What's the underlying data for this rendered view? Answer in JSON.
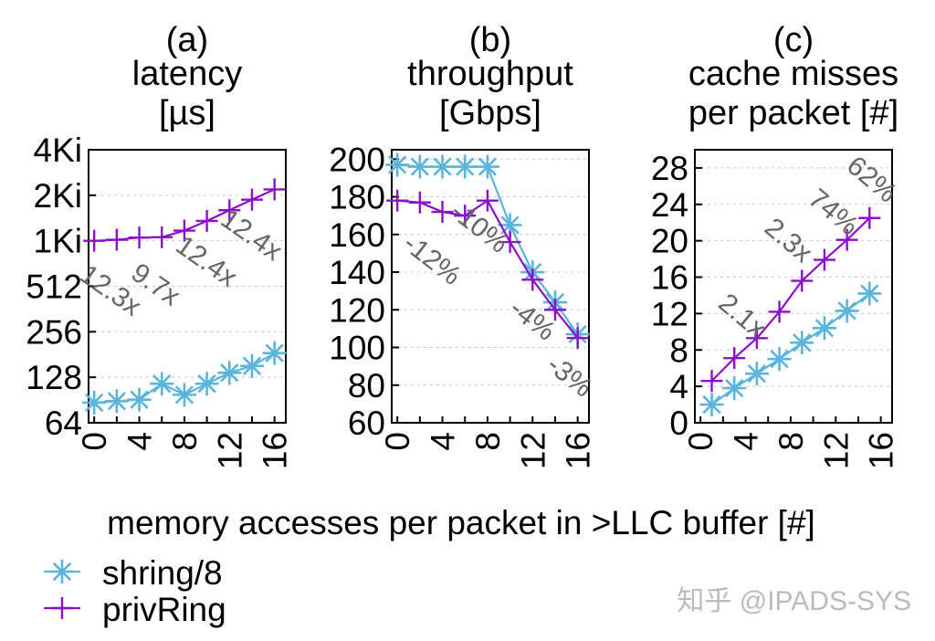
{
  "chart_data": {
    "xlabel": "memory accesses per packet in >LLC buffer [#]",
    "x_ticks": [
      "0",
      "4",
      "8",
      "12",
      "16"
    ],
    "legend": [
      {
        "name": "shring/8",
        "color": "#5ab4dc",
        "marker": "asterisk-icon"
      },
      {
        "name": "privRing",
        "color": "#8b10c9",
        "marker": "plus-icon"
      }
    ],
    "panels": [
      {
        "type": "line",
        "label": "(a)",
        "title_lines": [
          "latency",
          "[µs]"
        ],
        "yscale": "log2",
        "ylim": [
          64,
          4096
        ],
        "y_ticks": [
          {
            "value": 64,
            "label": "64"
          },
          {
            "value": 128,
            "label": "128"
          },
          {
            "value": 256,
            "label": "256"
          },
          {
            "value": 512,
            "label": "512"
          },
          {
            "value": 1024,
            "label": "1Ki"
          },
          {
            "value": 2048,
            "label": "2Ki"
          },
          {
            "value": 4096,
            "label": "4Ki"
          }
        ],
        "series": [
          {
            "name": "shring/8",
            "x": [
              0,
              2,
              4,
              6,
              8,
              10,
              12,
              14,
              16
            ],
            "values": [
              87,
              89,
              91,
              116,
              98,
              116,
              137,
              152,
              185
            ]
          },
          {
            "name": "privRing",
            "x": [
              0,
              2,
              4,
              6,
              8,
              10,
              12,
              14,
              16
            ],
            "values": [
              1024,
              1040,
              1075,
              1080,
              1195,
              1385,
              1630,
              1915,
              2240
            ]
          }
        ],
        "annotations": [
          {
            "text": "12.3x",
            "x": 1.0,
            "y": 430,
            "angle": 35
          },
          {
            "text": "9.7x",
            "x": 5.0,
            "y": 470,
            "angle": 35
          },
          {
            "text": "12.4x",
            "x": 9.5,
            "y": 670,
            "angle": 35
          },
          {
            "text": "12.4x",
            "x": 13.5,
            "y": 1000,
            "angle": 35
          }
        ]
      },
      {
        "type": "line",
        "label": "(b)",
        "title_lines": [
          "throughput",
          "[Gbps]"
        ],
        "yscale": "linear",
        "ylim": [
          60,
          205
        ],
        "y_ticks": [
          {
            "value": 60,
            "label": "60"
          },
          {
            "value": 80,
            "label": "80"
          },
          {
            "value": 100,
            "label": "100"
          },
          {
            "value": 120,
            "label": "120"
          },
          {
            "value": 140,
            "label": "140"
          },
          {
            "value": 160,
            "label": "160"
          },
          {
            "value": 180,
            "label": "180"
          },
          {
            "value": 200,
            "label": "200"
          }
        ],
        "series": [
          {
            "name": "shring/8",
            "x": [
              0,
              2,
              4,
              6,
              8,
              10,
              12,
              14,
              16
            ],
            "values": [
              197,
              196,
              196,
              196,
              196,
              165,
              140,
              124,
              107
            ]
          },
          {
            "name": "privRing",
            "x": [
              0,
              2,
              4,
              6,
              8,
              10,
              12,
              14,
              16
            ],
            "values": [
              178,
              177,
              172,
              170,
              178,
              156,
              136,
              120,
              105
            ]
          }
        ],
        "annotations": [
          {
            "text": "-12%",
            "x": 2.6,
            "y": 143,
            "angle": 38
          },
          {
            "text": "-10%",
            "x": 6.8,
            "y": 160,
            "angle": 38
          },
          {
            "text": "-4%",
            "x": 11.5,
            "y": 111,
            "angle": 38
          },
          {
            "text": "-3%",
            "x": 14.8,
            "y": 81,
            "angle": 38
          }
        ]
      },
      {
        "type": "line",
        "label": "(c)",
        "title_lines": [
          "cache misses",
          "per packet [#]"
        ],
        "yscale": "linear",
        "ylim": [
          0,
          30
        ],
        "y_ticks": [
          {
            "value": 0,
            "label": "0"
          },
          {
            "value": 4,
            "label": "4"
          },
          {
            "value": 8,
            "label": "8"
          },
          {
            "value": 12,
            "label": "12"
          },
          {
            "value": 16,
            "label": "16"
          },
          {
            "value": 20,
            "label": "20"
          },
          {
            "value": 24,
            "label": "24"
          },
          {
            "value": 28,
            "label": "28"
          }
        ],
        "series": [
          {
            "name": "shring/8",
            "x": [
              1,
              3,
              5,
              7,
              9,
              11,
              13,
              15
            ],
            "values": [
              2.0,
              3.8,
              5.4,
              7.0,
              8.8,
              10.4,
              12.3,
              14.2
            ]
          },
          {
            "name": "privRing",
            "x": [
              1,
              3,
              5,
              7,
              9,
              11,
              13,
              15
            ],
            "values": [
              4.6,
              7.1,
              9.3,
              12.2,
              15.6,
              17.9,
              20.1,
              22.5
            ]
          }
        ],
        "annotations": [
          {
            "text": "2.1x",
            "x": 3.2,
            "y": 11.0,
            "angle": 40
          },
          {
            "text": "2.3x",
            "x": 7.3,
            "y": 19.3,
            "angle": 40
          },
          {
            "text": "74%",
            "x": 11.3,
            "y": 22.4,
            "angle": 40
          },
          {
            "text": "62%",
            "x": 14.7,
            "y": 26.0,
            "angle": 40
          }
        ]
      }
    ]
  },
  "watermark": "知乎 @IPADS-SYS"
}
